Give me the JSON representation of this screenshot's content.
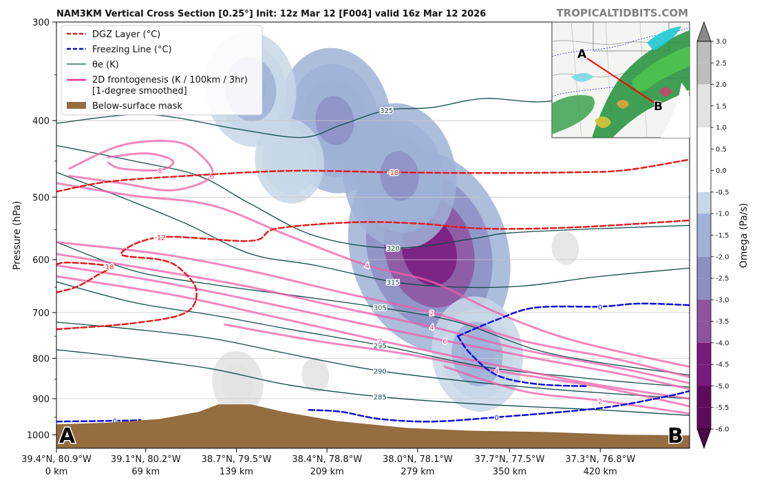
{
  "header": {
    "title": "NAM3KM Vertical Cross Section [0.25°] Init: 12z Mar 12 [F004] valid 16z Mar 12 2026",
    "brand": "TROPICALTIDBITS.COM"
  },
  "chart_data": {
    "type": "cross-section",
    "title": "NAM3KM Vertical Cross Section [0.25°] Init: 12z Mar 12 [F004] valid 16z Mar 12 2026",
    "ylabel": "Pressure (hPa)",
    "ylim": [
      1040,
      300
    ],
    "y_scale": "log",
    "y_ticks": [
      300,
      400,
      500,
      600,
      700,
      800,
      900,
      1000
    ],
    "x_range_km": [
      0,
      489
    ],
    "x_ticks": [
      {
        "coord": "39.4°N, 80.9°W",
        "dist": "0 km",
        "km": 0
      },
      {
        "coord": "39.1°N, 80.2°W",
        "dist": "69 km",
        "km": 69
      },
      {
        "coord": "38.7°N, 79.5°W",
        "dist": "139 km",
        "km": 139
      },
      {
        "coord": "38.4°N, 78.8°W",
        "dist": "209 km",
        "km": 209
      },
      {
        "coord": "38.0°N, 78.1°W",
        "dist": "279 km",
        "km": 279
      },
      {
        "coord": "37.7°N, 77.5°W",
        "dist": "350 km",
        "km": 350
      },
      {
        "coord": "37.3°N, 76.8°W",
        "dist": "420 km",
        "km": 420
      }
    ],
    "endpoints": {
      "start": "A",
      "end": "B"
    },
    "legend": {
      "position": "top-left",
      "entries": [
        {
          "label": "DGZ Layer (°C)",
          "color": "#e31a1c",
          "style": "dashed"
        },
        {
          "label": "Freezing Line (°C)",
          "color": "#0b0bd9",
          "style": "dashed"
        },
        {
          "label": "θe (K)",
          "color": "#0f4a4a",
          "style": "solid"
        },
        {
          "label": "2D frontogenesis (K / 100km / 3hr)",
          "label2": "[1-degree smoothed]",
          "color": "#e8318f",
          "style": "solid"
        },
        {
          "label": "Below-surface mask",
          "color": "#946d40",
          "style": "patch"
        }
      ]
    },
    "colorbar": {
      "label": "Omega (Pa/s)",
      "min": -6.0,
      "max": 3.0,
      "ticks": [
        "3.0",
        "2.5",
        "2.0",
        "1.5",
        "1.0",
        "0.5",
        "0.0",
        "-0.5",
        "-1.0",
        "-1.5",
        "-2.0",
        "-2.5",
        "-3.0",
        "-3.5",
        "-4.0",
        "-4.5",
        "-5.0",
        "-5.5",
        "-6.0"
      ]
    },
    "omega_field": [
      {
        "km": 288,
        "p": 585,
        "value": -5.0
      },
      {
        "km": 265,
        "p": 470,
        "value": -3.0
      },
      {
        "km": 215,
        "p": 400,
        "value": -3.0
      },
      {
        "km": 150,
        "p": 365,
        "value": -2.0
      },
      {
        "km": 325,
        "p": 790,
        "value": -2.0
      },
      {
        "km": 180,
        "p": 450,
        "value": -1.0
      },
      {
        "km": 200,
        "p": 840,
        "value": 1.5
      },
      {
        "km": 140,
        "p": 860,
        "value": 2.0
      },
      {
        "km": 393,
        "p": 580,
        "value": 1.5
      },
      {
        "km": 476,
        "p": 600,
        "value": 1.0
      },
      {
        "km": 274,
        "p": 335,
        "value": 1.0
      }
    ],
    "dgz_lines": [
      {
        "label": "-18",
        "points": [
          [
            0,
            492
          ],
          [
            40,
            478
          ],
          [
            100,
            470
          ],
          [
            180,
            463
          ],
          [
            260,
            465
          ],
          [
            330,
            466
          ],
          [
            400,
            465
          ],
          [
            440,
            462
          ],
          [
            489,
            448
          ]
        ]
      },
      {
        "label": "-12",
        "points": [
          [
            0,
            735
          ],
          [
            60,
            722
          ],
          [
            100,
            700
          ],
          [
            108,
            655
          ],
          [
            95,
            615
          ],
          [
            80,
            600
          ],
          [
            50,
            590
          ],
          [
            80,
            562
          ],
          [
            150,
            568
          ],
          [
            170,
            548
          ],
          [
            230,
            538
          ],
          [
            280,
            540
          ],
          [
            330,
            548
          ],
          [
            400,
            546
          ],
          [
            489,
            535
          ]
        ]
      },
      {
        "label": "-18",
        "points": [
          [
            0,
            660
          ],
          [
            15,
            650
          ],
          [
            30,
            630
          ],
          [
            40,
            612
          ],
          [
            10,
            605
          ],
          [
            0,
            608
          ]
        ]
      }
    ],
    "freezing_lines": [
      {
        "label": "0",
        "points": [
          [
            0,
            962
          ],
          [
            45,
            960
          ],
          [
            65,
            958
          ]
        ]
      },
      {
        "label": "0",
        "points": [
          [
            195,
            930
          ],
          [
            220,
            935
          ],
          [
            250,
            955
          ],
          [
            290,
            962
          ],
          [
            340,
            950
          ],
          [
            420,
            925
          ],
          [
            470,
            895
          ],
          [
            489,
            880
          ]
        ]
      },
      {
        "label": "0",
        "points": [
          [
            310,
            750
          ],
          [
            340,
            715
          ],
          [
            370,
            690
          ],
          [
            420,
            688
          ],
          [
            450,
            682
          ],
          [
            489,
            685
          ]
        ]
      },
      {
        "label": "",
        "points": [
          [
            310,
            750
          ],
          [
            320,
            790
          ],
          [
            340,
            840
          ],
          [
            370,
            862
          ],
          [
            410,
            868
          ]
        ]
      }
    ],
    "theta_e_lines": [
      {
        "label": "325",
        "points": [
          [
            0,
            403
          ],
          [
            70,
            393
          ],
          [
            140,
            410
          ],
          [
            190,
            420
          ],
          [
            220,
            405
          ],
          [
            255,
            388
          ],
          [
            290,
            385
          ],
          [
            330,
            375
          ],
          [
            380,
            378
          ],
          [
            440,
            360
          ],
          [
            489,
            355
          ]
        ]
      },
      {
        "label": "320",
        "points": [
          [
            0,
            430
          ],
          [
            60,
            450
          ],
          [
            110,
            470
          ],
          [
            150,
            510
          ],
          [
            200,
            560
          ],
          [
            260,
            580
          ],
          [
            320,
            565
          ],
          [
            350,
            555
          ],
          [
            420,
            548
          ],
          [
            489,
            543
          ]
        ]
      },
      {
        "label": "315",
        "points": [
          [
            0,
            465
          ],
          [
            50,
            500
          ],
          [
            100,
            540
          ],
          [
            150,
            590
          ],
          [
            200,
            610
          ],
          [
            260,
            640
          ],
          [
            310,
            650
          ],
          [
            360,
            648
          ],
          [
            420,
            630
          ],
          [
            489,
            615
          ]
        ]
      },
      {
        "label": "305",
        "points": [
          [
            0,
            570
          ],
          [
            60,
            620
          ],
          [
            120,
            645
          ],
          [
            180,
            665
          ],
          [
            250,
            690
          ],
          [
            310,
            720
          ],
          [
            370,
            780
          ],
          [
            420,
            810
          ],
          [
            489,
            840
          ]
        ]
      },
      {
        "label": "295",
        "points": [
          [
            0,
            640
          ],
          [
            60,
            680
          ],
          [
            120,
            705
          ],
          [
            180,
            735
          ],
          [
            250,
            770
          ],
          [
            330,
            820
          ],
          [
            400,
            845
          ],
          [
            450,
            860
          ],
          [
            489,
            870
          ]
        ]
      },
      {
        "label": "290",
        "points": [
          [
            0,
            720
          ],
          [
            60,
            735
          ],
          [
            120,
            755
          ],
          [
            180,
            790
          ],
          [
            250,
            830
          ],
          [
            330,
            860
          ],
          [
            400,
            880
          ],
          [
            489,
            900
          ]
        ]
      },
      {
        "label": "285",
        "points": [
          [
            0,
            780
          ],
          [
            60,
            800
          ],
          [
            120,
            825
          ],
          [
            180,
            865
          ],
          [
            250,
            895
          ],
          [
            330,
            915
          ],
          [
            420,
            930
          ],
          [
            489,
            945
          ]
        ]
      }
    ],
    "frontogenesis_lines": [
      {
        "label": "6",
        "points": [
          [
            10,
            460
          ],
          [
            50,
            430
          ],
          [
            90,
            425
          ],
          [
            110,
            440
          ],
          [
            120,
            470
          ],
          [
            90,
            490
          ],
          [
            50,
            480
          ],
          [
            10,
            470
          ]
        ]
      },
      {
        "label": "8",
        "points": [
          [
            40,
            445
          ],
          [
            70,
            440
          ],
          [
            90,
            450
          ],
          [
            80,
            462
          ],
          [
            50,
            460
          ],
          [
            40,
            452
          ]
        ]
      },
      {
        "label": "4",
        "points": [
          [
            0,
            480
          ],
          [
            60,
            498
          ],
          [
            120,
            512
          ],
          [
            180,
            560
          ],
          [
            240,
            610
          ],
          [
            290,
            640
          ],
          [
            340,
            700
          ],
          [
            400,
            760
          ],
          [
            489,
            820
          ]
        ]
      },
      {
        "label": "2",
        "points": [
          [
            0,
            570
          ],
          [
            80,
            590
          ],
          [
            150,
            620
          ],
          [
            220,
            660
          ],
          [
            290,
            700
          ],
          [
            360,
            760
          ],
          [
            430,
            800
          ],
          [
            489,
            845
          ]
        ]
      },
      {
        "label": "4",
        "points": [
          [
            0,
            590
          ],
          [
            80,
            620
          ],
          [
            150,
            650
          ],
          [
            220,
            690
          ],
          [
            290,
            730
          ],
          [
            360,
            780
          ],
          [
            430,
            820
          ],
          [
            489,
            860
          ]
        ]
      },
      {
        "label": "6",
        "points": [
          [
            0,
            610
          ],
          [
            80,
            640
          ],
          [
            160,
            680
          ],
          [
            230,
            720
          ],
          [
            300,
            760
          ],
          [
            370,
            800
          ],
          [
            440,
            840
          ],
          [
            489,
            875
          ]
        ]
      },
      {
        "label": "2",
        "points": [
          [
            0,
            630
          ],
          [
            90,
            665
          ],
          [
            170,
            710
          ],
          [
            250,
            760
          ],
          [
            330,
            810
          ],
          [
            410,
            860
          ],
          [
            489,
            900
          ]
        ]
      },
      {
        "label": "4",
        "points": [
          [
            130,
            725
          ],
          [
            200,
            760
          ],
          [
            270,
            790
          ],
          [
            340,
            830
          ],
          [
            420,
            870
          ],
          [
            489,
            920
          ]
        ]
      },
      {
        "label": "2",
        "points": [
          [
            300,
            820
          ],
          [
            360,
            880
          ],
          [
            420,
            905
          ],
          [
            489,
            940
          ]
        ]
      }
    ],
    "terrain": [
      [
        0,
        970
      ],
      [
        40,
        965
      ],
      [
        80,
        955
      ],
      [
        110,
        935
      ],
      [
        125,
        915
      ],
      [
        150,
        915
      ],
      [
        175,
        935
      ],
      [
        215,
        960
      ],
      [
        270,
        980
      ],
      [
        320,
        988
      ],
      [
        380,
        992
      ],
      [
        440,
        1000
      ],
      [
        489,
        1002
      ]
    ],
    "inset_map": {
      "start_label": "A",
      "end_label": "B"
    }
  }
}
